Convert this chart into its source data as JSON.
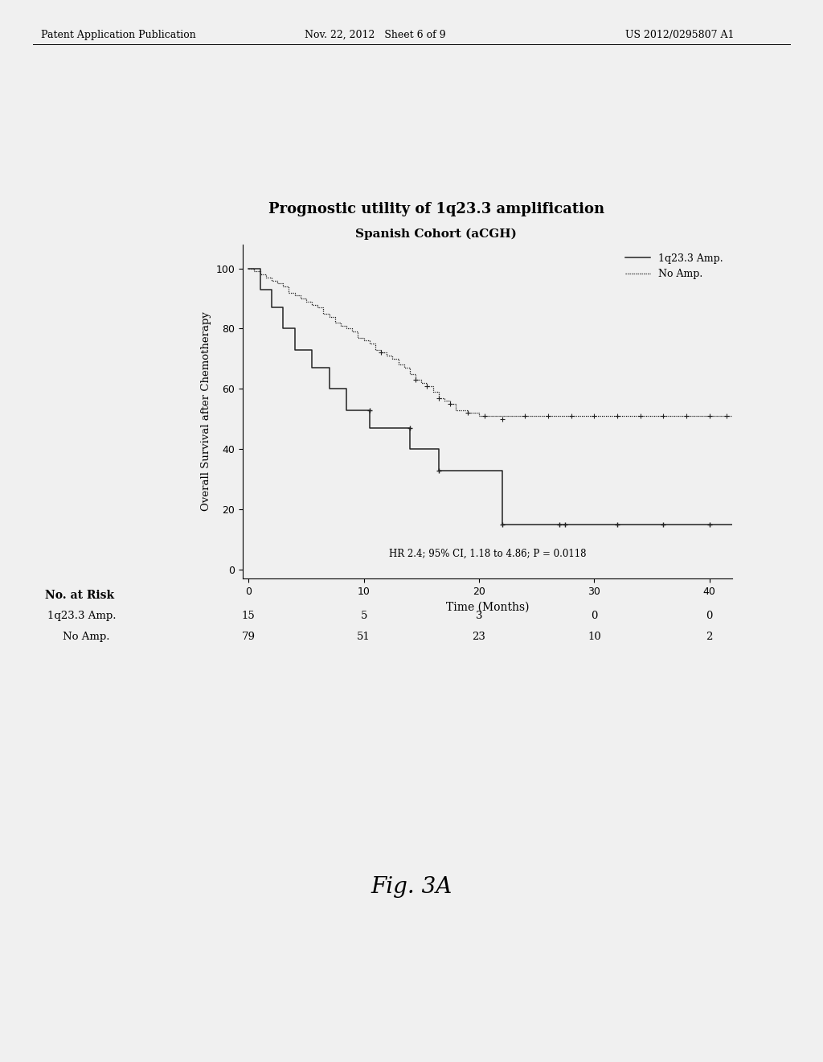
{
  "title": "Prognostic utility of 1q23.3 amplification",
  "subtitle": "Spanish Cohort (aCGH)",
  "xlabel": "Time (Months)",
  "ylabel": "Overall Survival after Chemotherapy",
  "xlim": [
    -0.5,
    42
  ],
  "ylim": [
    -3,
    108
  ],
  "yticks": [
    0,
    20,
    40,
    60,
    80,
    100
  ],
  "xticks": [
    0,
    10,
    20,
    30,
    40
  ],
  "annotation": "HR 2.4; 95% CI, 1.18 to 4.86; P = 0.0118",
  "legend_labels": [
    "1q23.3 Amp.",
    "No Amp."
  ],
  "no_at_risk_label": "No. at Risk",
  "risk_labels": [
    "1q23.3 Amp.",
    "No Amp."
  ],
  "risk_times": [
    0,
    10,
    20,
    30,
    40
  ],
  "risk_amp": [
    15,
    5,
    3,
    0,
    0
  ],
  "risk_noamp": [
    79,
    51,
    23,
    10,
    2
  ],
  "amp_color": "#222222",
  "noamp_color": "#222222",
  "background_color": "#f0f0f0",
  "amp_x": [
    0,
    1.0,
    1.0,
    2.0,
    2.0,
    3.0,
    3.0,
    4.0,
    4.0,
    5.5,
    5.5,
    7.0,
    7.0,
    8.5,
    8.5,
    10.5,
    10.5,
    14.0,
    14.0,
    16.5,
    16.5,
    22.0,
    22.0,
    27.5,
    27.5,
    42
  ],
  "amp_y": [
    100,
    100,
    93,
    93,
    87,
    87,
    80,
    80,
    73,
    73,
    67,
    67,
    60,
    60,
    53,
    53,
    47,
    47,
    40,
    40,
    33,
    33,
    15,
    15,
    15,
    15
  ],
  "noamp_x": [
    0,
    0.5,
    0.5,
    1.0,
    1.0,
    1.5,
    1.5,
    2.0,
    2.0,
    2.5,
    2.5,
    3.0,
    3.0,
    3.5,
    3.5,
    4.0,
    4.0,
    4.5,
    4.5,
    5.0,
    5.0,
    5.5,
    5.5,
    6.0,
    6.0,
    6.5,
    6.5,
    7.0,
    7.0,
    7.5,
    7.5,
    8.0,
    8.0,
    8.5,
    8.5,
    9.0,
    9.0,
    9.5,
    9.5,
    10.0,
    10.0,
    10.5,
    10.5,
    11.0,
    11.0,
    11.5,
    11.5,
    12.0,
    12.0,
    12.5,
    12.5,
    13.0,
    13.0,
    13.5,
    13.5,
    14.0,
    14.0,
    14.5,
    14.5,
    15.0,
    15.0,
    15.5,
    15.5,
    16.0,
    16.0,
    16.5,
    16.5,
    17.0,
    17.0,
    17.5,
    17.5,
    18.0,
    18.0,
    19.0,
    19.0,
    20.0,
    20.0,
    42
  ],
  "noamp_y": [
    100,
    100,
    99,
    99,
    98,
    98,
    97,
    97,
    96,
    96,
    95,
    95,
    94,
    94,
    92,
    92,
    91,
    91,
    90,
    90,
    89,
    89,
    88,
    88,
    87,
    87,
    85,
    85,
    84,
    84,
    82,
    82,
    81,
    81,
    80,
    80,
    79,
    79,
    77,
    77,
    76,
    76,
    75,
    75,
    73,
    73,
    72,
    72,
    71,
    71,
    70,
    70,
    68,
    68,
    67,
    67,
    65,
    65,
    63,
    63,
    62,
    62,
    61,
    61,
    59,
    59,
    57,
    57,
    56,
    56,
    55,
    55,
    53,
    53,
    52,
    52,
    51,
    51
  ],
  "amp_censors_x": [
    10.5,
    14.0,
    16.5,
    22.0,
    27.0,
    27.5,
    32.0,
    36.0,
    40.0
  ],
  "amp_censors_y": [
    53,
    47,
    33,
    15,
    15,
    15,
    15,
    15,
    15
  ],
  "noamp_censors_x": [
    11.5,
    14.5,
    15.5,
    16.5,
    17.5,
    19.0,
    20.5,
    22.0,
    24.0,
    26.0,
    28.0,
    30.0,
    32.0,
    34.0,
    36.0,
    38.0,
    40.0,
    41.5
  ],
  "noamp_censors_y": [
    72,
    63,
    61,
    57,
    55,
    52,
    51,
    50,
    51,
    51,
    51,
    51,
    51,
    51,
    51,
    51,
    51,
    51
  ],
  "fig_caption": "Fig. 3A",
  "header_left": "Patent Application Publication",
  "header_mid": "Nov. 22, 2012   Sheet 6 of 9",
  "header_right": "US 2012/0295807 A1"
}
